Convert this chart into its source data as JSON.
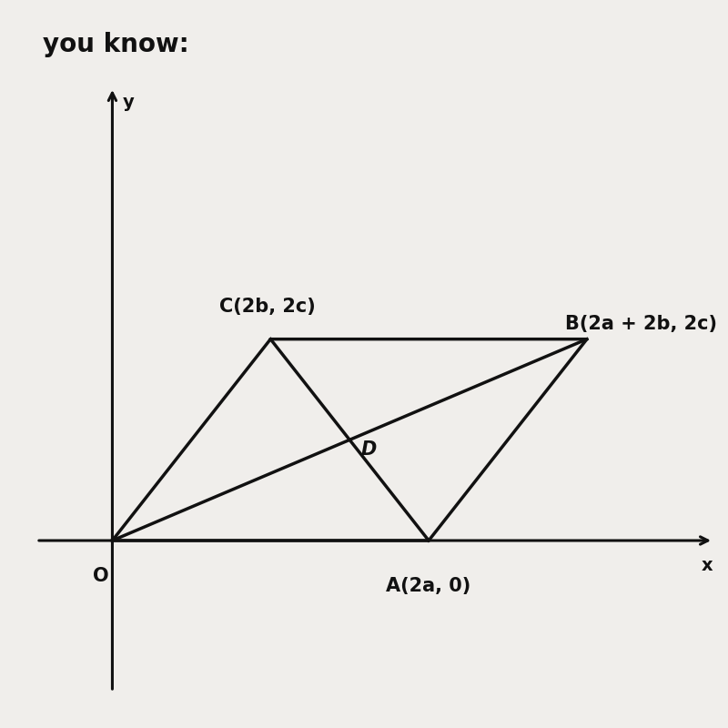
{
  "background_color": "#d8d5d0",
  "paper_color": "#f0eeeb",
  "title_text": "you know:",
  "O": [
    0,
    0
  ],
  "A": [
    5,
    0
  ],
  "B": [
    7.5,
    2
  ],
  "C": [
    2.5,
    2
  ],
  "D_label": "D",
  "labels": {
    "O": "O",
    "A": "A(2a, 0)",
    "B": "B(2a + 2b, 2c)",
    "C": "C(2b, 2c)"
  },
  "axis_color": "#111111",
  "line_color": "#111111",
  "line_width": 2.5,
  "font_size_labels": 15,
  "font_size_axes": 14,
  "font_size_title": 20,
  "xlim": [
    -1.2,
    9.5
  ],
  "ylim": [
    -1.5,
    4.5
  ],
  "xlabel": "x",
  "ylabel": "y"
}
